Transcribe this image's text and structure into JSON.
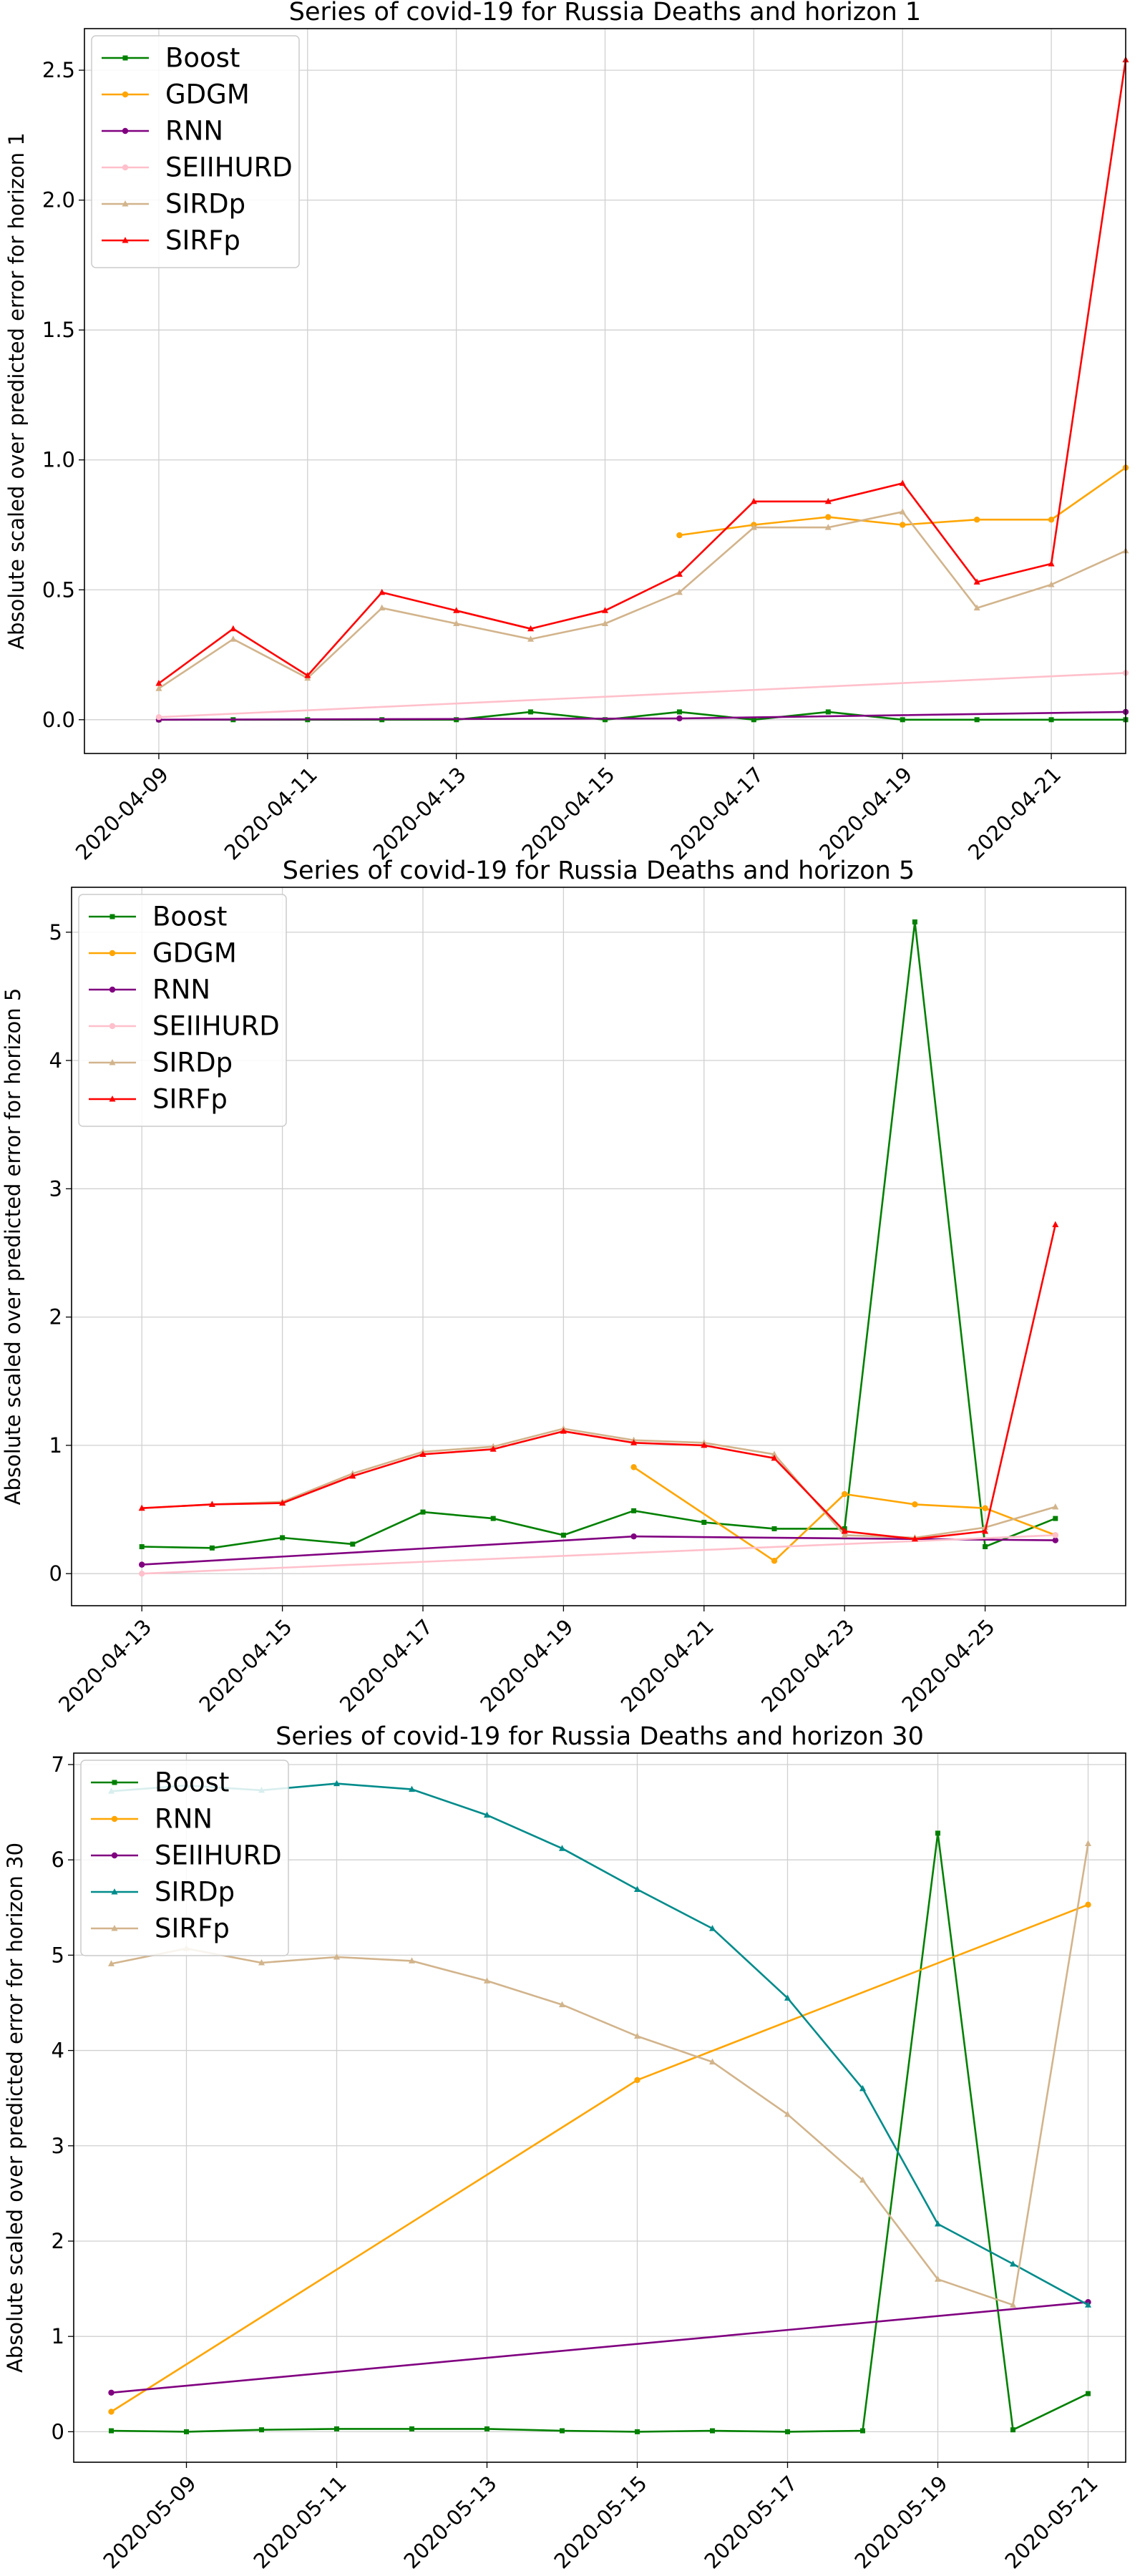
{
  "chart_data": [
    {
      "type": "line",
      "title": "Series of covid-19 for Russia Deaths and horizon 1",
      "ylabel": "Absolute scaled over predicted error for horizon 1",
      "xlabel": "",
      "x_axis": {
        "start": "2020-04-08",
        "end": "2020-04-22"
      },
      "x_ticks": [
        "2020-04-09",
        "2020-04-11",
        "2020-04-13",
        "2020-04-15",
        "2020-04-17",
        "2020-04-19",
        "2020-04-21"
      ],
      "ylim": [
        -0.13,
        2.66
      ],
      "y_ticks": [
        0.0,
        0.5,
        1.0,
        1.5,
        2.0,
        2.5
      ],
      "y_tick_labels": [
        "0.0",
        "0.5",
        "1.0",
        "1.5",
        "2.0",
        "2.5"
      ],
      "grid": true,
      "legend_position": "top-left",
      "series": [
        {
          "name": "Boost",
          "color": "#008000",
          "marker": "square",
          "x": [
            "2020-04-09",
            "2020-04-10",
            "2020-04-11",
            "2020-04-12",
            "2020-04-13",
            "2020-04-14",
            "2020-04-15",
            "2020-04-16",
            "2020-04-17",
            "2020-04-18",
            "2020-04-19",
            "2020-04-20",
            "2020-04-21",
            "2020-04-22"
          ],
          "y": [
            0.0,
            0.0,
            0.0,
            0.0,
            0.0,
            0.03,
            0.0,
            0.03,
            0.0,
            0.03,
            0.0,
            0.0,
            0.0,
            0.0
          ]
        },
        {
          "name": "GDGM",
          "color": "#ffa500",
          "marker": "circle",
          "x": [
            "2020-04-16",
            "2020-04-17",
            "2020-04-18",
            "2020-04-19",
            "2020-04-20",
            "2020-04-21",
            "2020-04-22"
          ],
          "y": [
            0.71,
            0.75,
            0.78,
            0.75,
            0.77,
            0.77,
            0.97
          ]
        },
        {
          "name": "RNN",
          "color": "#800080",
          "marker": "circle",
          "x": [
            "2020-04-09",
            "2020-04-16",
            "2020-04-22"
          ],
          "y": [
            0.0,
            0.005,
            0.03
          ]
        },
        {
          "name": "SEIIHURD",
          "color": "#ffc0cb",
          "marker": "circle",
          "x": [
            "2020-04-09",
            "2020-04-22"
          ],
          "y": [
            0.01,
            0.18
          ]
        },
        {
          "name": "SIRDp",
          "color": "#d2b48c",
          "marker": "triangle",
          "x": [
            "2020-04-09",
            "2020-04-10",
            "2020-04-11",
            "2020-04-12",
            "2020-04-13",
            "2020-04-14",
            "2020-04-15",
            "2020-04-16",
            "2020-04-17",
            "2020-04-18",
            "2020-04-19",
            "2020-04-20",
            "2020-04-21",
            "2020-04-22"
          ],
          "y": [
            0.12,
            0.31,
            0.16,
            0.43,
            0.37,
            0.31,
            0.37,
            0.49,
            0.74,
            0.74,
            0.8,
            0.43,
            0.52,
            0.65
          ]
        },
        {
          "name": "SIRFp",
          "color": "#ff0000",
          "marker": "triangle",
          "x": [
            "2020-04-09",
            "2020-04-10",
            "2020-04-11",
            "2020-04-12",
            "2020-04-13",
            "2020-04-14",
            "2020-04-15",
            "2020-04-16",
            "2020-04-17",
            "2020-04-18",
            "2020-04-19",
            "2020-04-20",
            "2020-04-21",
            "2020-04-22"
          ],
          "y": [
            0.14,
            0.35,
            0.17,
            0.49,
            0.42,
            0.35,
            0.42,
            0.56,
            0.84,
            0.84,
            0.91,
            0.53,
            0.6,
            2.54
          ]
        }
      ]
    },
    {
      "type": "line",
      "title": "Series of covid-19 for Russia Deaths and horizon 5",
      "ylabel": "Absolute scaled over predicted error for horizon 5",
      "xlabel": "",
      "x_axis": {
        "start": "2020-04-12",
        "end": "2020-04-27"
      },
      "x_ticks": [
        "2020-04-13",
        "2020-04-15",
        "2020-04-17",
        "2020-04-19",
        "2020-04-21",
        "2020-04-23",
        "2020-04-25"
      ],
      "ylim": [
        -0.25,
        5.35
      ],
      "y_ticks": [
        0,
        1,
        2,
        3,
        4,
        5
      ],
      "y_tick_labels": [
        "0",
        "1",
        "2",
        "3",
        "4",
        "5"
      ],
      "grid": true,
      "legend_position": "top-left",
      "series": [
        {
          "name": "Boost",
          "color": "#008000",
          "marker": "square",
          "x": [
            "2020-04-13",
            "2020-04-14",
            "2020-04-15",
            "2020-04-16",
            "2020-04-17",
            "2020-04-18",
            "2020-04-19",
            "2020-04-20",
            "2020-04-21",
            "2020-04-22",
            "2020-04-23",
            "2020-04-24",
            "2020-04-25",
            "2020-04-26"
          ],
          "y": [
            0.21,
            0.2,
            0.28,
            0.23,
            0.48,
            0.43,
            0.3,
            0.49,
            0.4,
            0.35,
            0.35,
            5.08,
            0.21,
            0.43
          ]
        },
        {
          "name": "GDGM",
          "color": "#ffa500",
          "marker": "circle",
          "x": [
            "2020-04-20",
            "2020-04-22",
            "2020-04-23",
            "2020-04-24",
            "2020-04-25",
            "2020-04-26"
          ],
          "y": [
            0.83,
            0.1,
            0.62,
            0.54,
            0.51,
            0.3
          ]
        },
        {
          "name": "RNN",
          "color": "#800080",
          "marker": "circle",
          "x": [
            "2020-04-13",
            "2020-04-20",
            "2020-04-26"
          ],
          "y": [
            0.07,
            0.29,
            0.26
          ]
        },
        {
          "name": "SEIIHURD",
          "color": "#ffc0cb",
          "marker": "circle",
          "x": [
            "2020-04-13",
            "2020-04-26"
          ],
          "y": [
            0.0,
            0.3
          ]
        },
        {
          "name": "SIRDp",
          "color": "#d2b48c",
          "marker": "triangle",
          "x": [
            "2020-04-13",
            "2020-04-14",
            "2020-04-15",
            "2020-04-16",
            "2020-04-17",
            "2020-04-18",
            "2020-04-19",
            "2020-04-20",
            "2020-04-21",
            "2020-04-22",
            "2020-04-23",
            "2020-04-24",
            "2020-04-25",
            "2020-04-26"
          ],
          "y": [
            0.51,
            0.54,
            0.56,
            0.78,
            0.95,
            0.99,
            1.13,
            1.04,
            1.02,
            0.93,
            0.3,
            0.28,
            0.36,
            0.52
          ]
        },
        {
          "name": "SIRFp",
          "color": "#ff0000",
          "marker": "triangle",
          "x": [
            "2020-04-13",
            "2020-04-14",
            "2020-04-15",
            "2020-04-16",
            "2020-04-17",
            "2020-04-18",
            "2020-04-19",
            "2020-04-20",
            "2020-04-21",
            "2020-04-22",
            "2020-04-23",
            "2020-04-24",
            "2020-04-25",
            "2020-04-26"
          ],
          "y": [
            0.51,
            0.54,
            0.55,
            0.76,
            0.93,
            0.97,
            1.11,
            1.02,
            1.0,
            0.9,
            0.33,
            0.27,
            0.33,
            2.72
          ]
        }
      ]
    },
    {
      "type": "line",
      "title": "Series of covid-19 for Russia Deaths and horizon 30",
      "ylabel": "Absolute scaled over predicted error for horizon 30",
      "xlabel": "",
      "x_axis": {
        "start": "2020-05-07T12:00",
        "end": "2020-05-21T12:00"
      },
      "x_ticks": [
        "2020-05-09",
        "2020-05-11",
        "2020-05-13",
        "2020-05-15",
        "2020-05-17",
        "2020-05-19",
        "2020-05-21"
      ],
      "ylim": [
        -0.32,
        7.12
      ],
      "y_ticks": [
        0,
        1,
        2,
        3,
        4,
        5,
        6,
        7
      ],
      "y_tick_labels": [
        "0",
        "1",
        "2",
        "3",
        "4",
        "5",
        "6",
        "7"
      ],
      "grid": true,
      "legend_position": "top-left",
      "series": [
        {
          "name": "Boost",
          "color": "#008000",
          "marker": "square",
          "x": [
            "2020-05-08",
            "2020-05-09",
            "2020-05-10",
            "2020-05-11",
            "2020-05-12",
            "2020-05-13",
            "2020-05-14",
            "2020-05-15",
            "2020-05-16",
            "2020-05-17",
            "2020-05-18",
            "2020-05-19",
            "2020-05-20",
            "2020-05-21"
          ],
          "y": [
            0.01,
            0.0,
            0.02,
            0.03,
            0.03,
            0.03,
            0.01,
            0.0,
            0.01,
            0.0,
            0.01,
            6.28,
            0.02,
            0.4
          ]
        },
        {
          "name": "RNN",
          "color": "#ffa500",
          "marker": "circle",
          "x": [
            "2020-05-08",
            "2020-05-15",
            "2020-05-21"
          ],
          "y": [
            0.21,
            3.69,
            5.53
          ]
        },
        {
          "name": "SEIIHURD",
          "color": "#800080",
          "marker": "circle",
          "x": [
            "2020-05-08",
            "2020-05-21"
          ],
          "y": [
            0.41,
            1.36
          ]
        },
        {
          "name": "SIRDp",
          "color": "#008b8b",
          "marker": "triangle",
          "x": [
            "2020-05-08",
            "2020-05-09",
            "2020-05-10",
            "2020-05-11",
            "2020-05-12",
            "2020-05-13",
            "2020-05-14",
            "2020-05-15",
            "2020-05-16",
            "2020-05-17",
            "2020-05-18",
            "2020-05-19",
            "2020-05-20",
            "2020-05-21"
          ],
          "y": [
            6.72,
            6.78,
            6.73,
            6.8,
            6.74,
            6.47,
            6.12,
            5.69,
            5.28,
            4.55,
            3.6,
            2.18,
            1.76,
            1.33
          ]
        },
        {
          "name": "SIRFp",
          "color": "#d2b48c",
          "marker": "triangle",
          "x": [
            "2020-05-08",
            "2020-05-09",
            "2020-05-10",
            "2020-05-11",
            "2020-05-12",
            "2020-05-13",
            "2020-05-14",
            "2020-05-15",
            "2020-05-16",
            "2020-05-17",
            "2020-05-18",
            "2020-05-19",
            "2020-05-20",
            "2020-05-21"
          ],
          "y": [
            4.91,
            5.07,
            4.92,
            4.98,
            4.94,
            4.73,
            4.48,
            4.15,
            3.88,
            3.33,
            2.64,
            1.6,
            1.33,
            6.17
          ]
        }
      ]
    }
  ]
}
